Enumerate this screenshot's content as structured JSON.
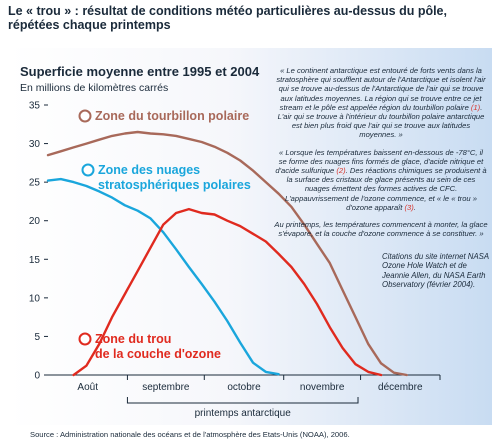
{
  "page_title": "Le « trou » : résultat de conditions météo particulières au-dessus du pôle, répétées chaque printemps",
  "quotes": {
    "p1": "« Le continent antarctique est entouré de forts vents dans la stratosphère qui soufflent autour de l'Antarctique et isolent l'air qui se trouve au-dessus de l'Antarctique de l'air qui se trouve aux latitudes moyennes. La région qui se trouve entre ce jet stream et le pôle est appelée région du tourbillon polaire ",
    "r1": "(1)",
    "p1b": ". L'air qui se trouve à l'intérieur du tourbillon polaire antarctique est bien plus froid que l'air qui se trouve aux latitudes moyennes. »",
    "p2": "« Lorsque les températures baissent en-dessous de -78°C, il se forme des nuages fins formés de glace, d'acide nitrique et d'acide sulfurique ",
    "r2": "(2)",
    "p2b": ". Des réactions chimiques se produisent à la surface des cristaux de glace présents au sein de ces nuages émettent des formes actives de CFC. L'appauvrissement de l'ozone commence, et « le « trou » d'ozone apparaît ",
    "r3": "(3)",
    "p2c": ".",
    "p3": "Au printemps, les températures commencent à monter, la glace s'évapore, et la couche d'ozone commence à se constituer. »"
  },
  "citation": "Citations du site internet NASA Ozone Hole Watch et de Jeannie Allen, du NASA Earth Observatory (février 2004).",
  "source": "Source : Administration nationale des océans et de l'atmosphère des Etats-Unis (NOAA), 2006.",
  "chart_data": {
    "type": "line",
    "title": "Superficie moyenne entre 1995 et 2004",
    "subtitle": "En millions de kilomètres carrés",
    "xlabel": "printemps antarctique",
    "ylabel": "",
    "ylim": [
      0,
      35
    ],
    "yticks": [
      0,
      5,
      10,
      15,
      20,
      25,
      30,
      35
    ],
    "xlim": [
      0,
      153
    ],
    "months": [
      {
        "label": "Août",
        "start": 0,
        "end": 31
      },
      {
        "label": "septembre",
        "start": 31,
        "end": 61
      },
      {
        "label": "octobre",
        "start": 61,
        "end": 92
      },
      {
        "label": "novembre",
        "start": 92,
        "end": 122
      },
      {
        "label": "décembre",
        "start": 122,
        "end": 153
      }
    ],
    "spring_range": [
      31,
      121
    ],
    "grid": false,
    "series": [
      {
        "name": "Zone du tourbillon polaire",
        "color": "#a8695a",
        "marker_day": 48,
        "label_lines": [
          "Zone du tourbillon polaire"
        ],
        "x": [
          0,
          5,
          10,
          15,
          20,
          25,
          30,
          35,
          40,
          45,
          50,
          55,
          60,
          65,
          70,
          75,
          80,
          85,
          90,
          95,
          100,
          105,
          110,
          115,
          120,
          125,
          130,
          135,
          140
        ],
        "y": [
          28.5,
          29,
          29.5,
          30,
          30.5,
          31,
          31.3,
          31.5,
          31.3,
          31.2,
          31,
          30.6,
          30.2,
          29.6,
          28.8,
          27.8,
          26.5,
          25,
          23.5,
          21.8,
          19.5,
          17,
          14.5,
          11,
          7.5,
          4,
          1.5,
          0.3,
          0
        ]
      },
      {
        "name": "Zone des nuages stratosphériques polaires",
        "color": "#1aa6dc",
        "marker_day": 23,
        "label_lines": [
          "Zone des nuages",
          "stratosphériques polaires"
        ],
        "x": [
          0,
          5,
          10,
          15,
          20,
          25,
          30,
          35,
          40,
          45,
          50,
          55,
          60,
          65,
          70,
          75,
          80,
          85,
          90
        ],
        "y": [
          25.2,
          25.4,
          25,
          24.5,
          23.8,
          23,
          22,
          21.3,
          20.3,
          18.5,
          16.3,
          14,
          11.8,
          9.5,
          7,
          4.2,
          1.6,
          0.4,
          0.1
        ]
      },
      {
        "name": "Zone du trou de la couche d'ozone",
        "color": "#e02a1f",
        "marker_day": 10,
        "label_lines": [
          "Zone du trou",
          "de la couche d'ozone"
        ],
        "x": [
          10,
          15,
          20,
          25,
          30,
          35,
          40,
          45,
          50,
          55,
          60,
          65,
          70,
          75,
          80,
          85,
          90,
          95,
          100,
          105,
          110,
          115,
          120,
          125,
          130
        ],
        "y": [
          0,
          1.2,
          4,
          7.5,
          10.5,
          13.5,
          16.5,
          19.5,
          21,
          21.5,
          21,
          20.8,
          20,
          19.3,
          18.3,
          17.3,
          15.7,
          14,
          11.8,
          9.2,
          6.2,
          3.5,
          1.4,
          0.4,
          0
        ]
      }
    ]
  }
}
